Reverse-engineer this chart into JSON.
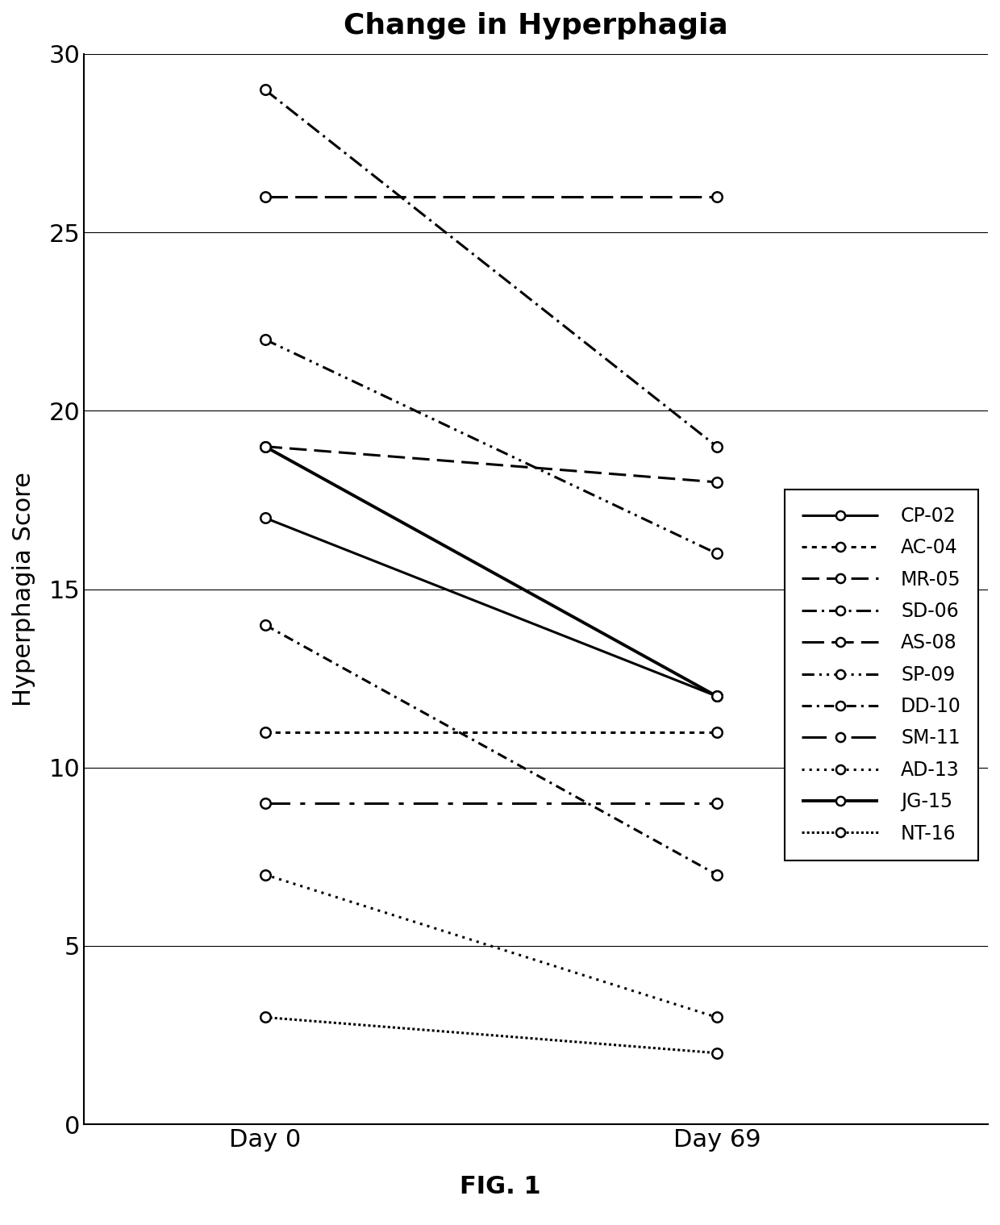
{
  "title": "Change in Hyperphagia",
  "ylabel": "Hyperphagia Score",
  "fig_label": "FIG. 1",
  "x_labels": [
    "Day 0",
    "Day 69"
  ],
  "ylim": [
    0,
    30
  ],
  "yticks": [
    0,
    5,
    10,
    15,
    20,
    25,
    30
  ],
  "series": [
    {
      "label": "CP-02",
      "day0": 17,
      "day69": 12
    },
    {
      "label": "AC-04",
      "day0": 11,
      "day69": 11
    },
    {
      "label": "MR-05",
      "day0": 19,
      "day69": 18
    },
    {
      "label": "SD-06",
      "day0": 29,
      "day69": 19
    },
    {
      "label": "AS-08",
      "day0": 26,
      "day69": 26
    },
    {
      "label": "SP-09",
      "day0": 22,
      "day69": 16
    },
    {
      "label": "DD-10",
      "day0": 14,
      "day69": 7
    },
    {
      "label": "SM-11",
      "day0": 9,
      "day69": 9
    },
    {
      "label": "AD-13",
      "day0": 7,
      "day69": 3
    },
    {
      "label": "JG-15",
      "day0": 19,
      "day69": 12
    },
    {
      "label": "NT-16",
      "day0": 3,
      "day69": 2
    }
  ]
}
